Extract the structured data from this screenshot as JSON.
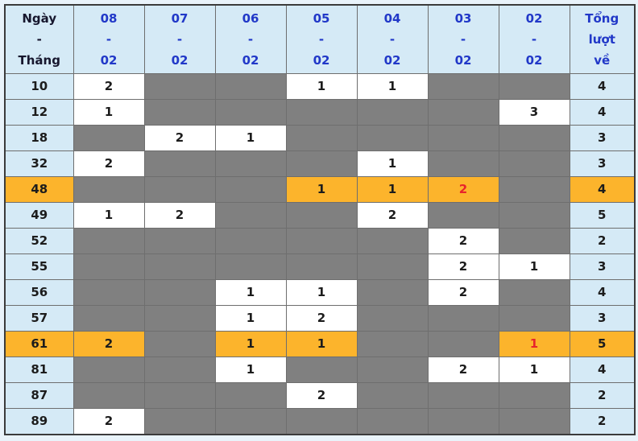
{
  "colors": {
    "page_bg": "#e9f3fa",
    "cell_blue": "#d5eaf6",
    "header_blue": "#2138c8",
    "gray_cell": "#808080",
    "highlight_orange": "#fcb42c",
    "red_text": "#e8242b",
    "number_text": "#1c1c1c"
  },
  "table": {
    "corner_header": {
      "id": "ngay-thang",
      "lines": [
        "Ngày",
        "-",
        "Tháng"
      ]
    },
    "date_columns": [
      {
        "id": "08-02",
        "lines": [
          "08",
          "-",
          "02"
        ]
      },
      {
        "id": "07-02",
        "lines": [
          "07",
          "-",
          "02"
        ]
      },
      {
        "id": "06-02",
        "lines": [
          "06",
          "-",
          "02"
        ]
      },
      {
        "id": "05-02",
        "lines": [
          "05",
          "-",
          "02"
        ]
      },
      {
        "id": "04-02",
        "lines": [
          "04",
          "-",
          "02"
        ]
      },
      {
        "id": "03-02",
        "lines": [
          "03",
          "-",
          "02"
        ]
      },
      {
        "id": "02-02",
        "lines": [
          "02",
          "-",
          "02"
        ]
      }
    ],
    "total_header": {
      "id": "tong-luot-ve",
      "lines": [
        "Tổng",
        "lượt",
        "về"
      ]
    },
    "rows": [
      {
        "label": "10",
        "highlighted": false,
        "cells": [
          {
            "v": "2"
          },
          null,
          null,
          {
            "v": "1"
          },
          {
            "v": "1"
          },
          null,
          null
        ],
        "total": "4"
      },
      {
        "label": "12",
        "highlighted": false,
        "cells": [
          {
            "v": "1"
          },
          null,
          null,
          null,
          null,
          null,
          {
            "v": "3"
          }
        ],
        "total": "4"
      },
      {
        "label": "18",
        "highlighted": false,
        "cells": [
          null,
          {
            "v": "2"
          },
          {
            "v": "1"
          },
          null,
          null,
          null,
          null
        ],
        "total": "3"
      },
      {
        "label": "32",
        "highlighted": false,
        "cells": [
          {
            "v": "2"
          },
          null,
          null,
          null,
          {
            "v": "1"
          },
          null,
          null
        ],
        "total": "3"
      },
      {
        "label": "48",
        "highlighted": true,
        "cells": [
          null,
          null,
          null,
          {
            "v": "1"
          },
          {
            "v": "1"
          },
          {
            "v": "2",
            "red": true
          },
          null
        ],
        "total": "4"
      },
      {
        "label": "49",
        "highlighted": false,
        "cells": [
          {
            "v": "1"
          },
          {
            "v": "2"
          },
          null,
          null,
          {
            "v": "2"
          },
          null,
          null
        ],
        "total": "5"
      },
      {
        "label": "52",
        "highlighted": false,
        "cells": [
          null,
          null,
          null,
          null,
          null,
          {
            "v": "2"
          },
          null
        ],
        "total": "2"
      },
      {
        "label": "55",
        "highlighted": false,
        "cells": [
          null,
          null,
          null,
          null,
          null,
          {
            "v": "2"
          },
          {
            "v": "1"
          }
        ],
        "total": "3"
      },
      {
        "label": "56",
        "highlighted": false,
        "cells": [
          null,
          null,
          {
            "v": "1"
          },
          {
            "v": "1"
          },
          null,
          {
            "v": "2"
          },
          null
        ],
        "total": "4"
      },
      {
        "label": "57",
        "highlighted": false,
        "cells": [
          null,
          null,
          {
            "v": "1"
          },
          {
            "v": "2"
          },
          null,
          null,
          null
        ],
        "total": "3"
      },
      {
        "label": "61",
        "highlighted": true,
        "cells": [
          {
            "v": "2"
          },
          null,
          {
            "v": "1"
          },
          {
            "v": "1"
          },
          null,
          null,
          {
            "v": "1",
            "red": true
          }
        ],
        "total": "5"
      },
      {
        "label": "81",
        "highlighted": false,
        "cells": [
          null,
          null,
          {
            "v": "1"
          },
          null,
          null,
          {
            "v": "2"
          },
          {
            "v": "1"
          }
        ],
        "total": "4"
      },
      {
        "label": "87",
        "highlighted": false,
        "cells": [
          null,
          null,
          null,
          {
            "v": "2"
          },
          null,
          null,
          null
        ],
        "total": "2"
      },
      {
        "label": "89",
        "highlighted": false,
        "cells": [
          {
            "v": "2"
          },
          null,
          null,
          null,
          null,
          null,
          null
        ],
        "total": "2"
      }
    ]
  }
}
